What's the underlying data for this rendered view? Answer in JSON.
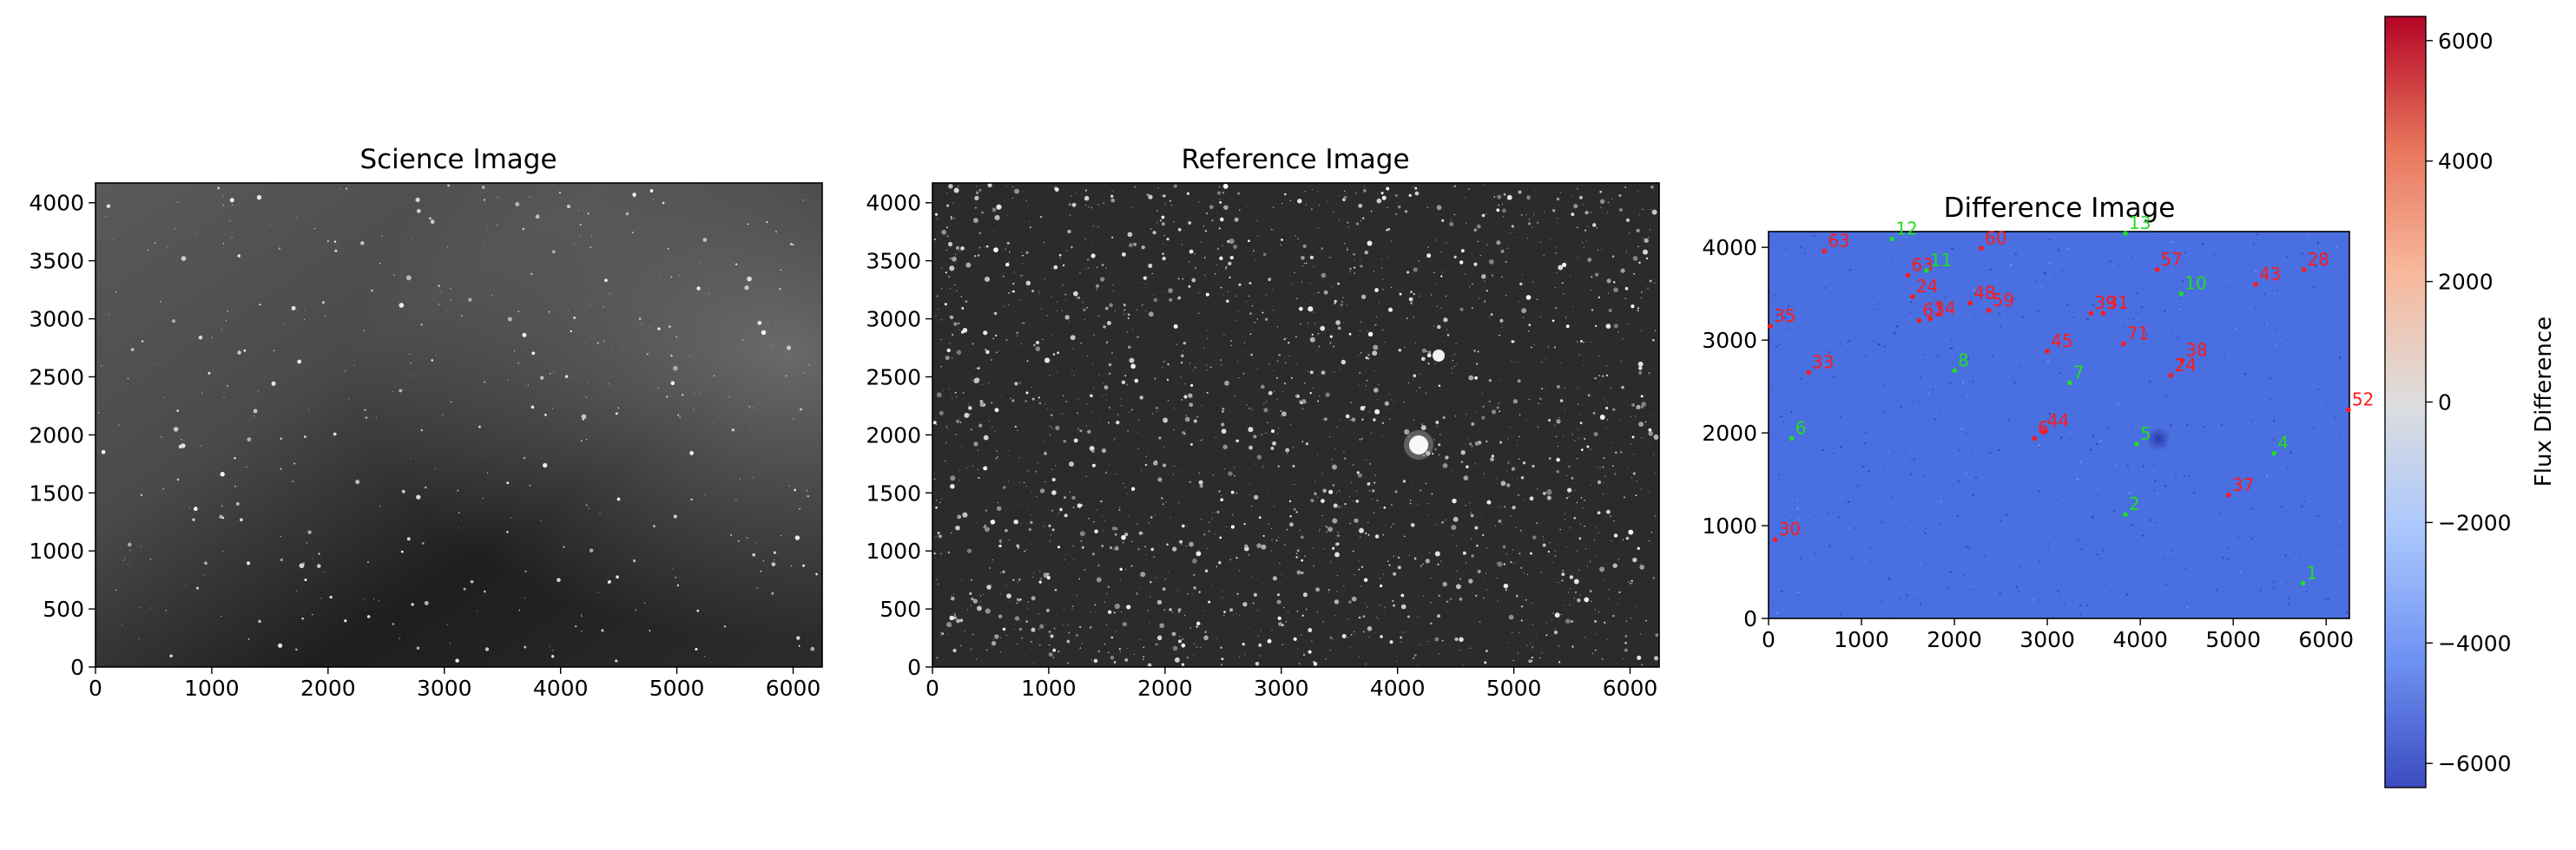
{
  "figure": {
    "colorbar": {
      "label": "Flux Difference",
      "ticks": [
        -6000,
        -4000,
        -2000,
        0,
        2000,
        4000,
        6000
      ],
      "tick_labels": [
        "−6000",
        "−4000",
        "−2000",
        "0",
        "2000",
        "4000",
        "6000"
      ],
      "range": [
        -6400,
        6400
      ],
      "colormap": "coolwarm",
      "colors": [
        "#3b4cc0",
        "#6f92f3",
        "#aac7fd",
        "#dddddd",
        "#f7b89c",
        "#e7745b",
        "#b40426"
      ]
    }
  },
  "chart_data": [
    {
      "type": "image",
      "title": "Science Image",
      "xlim": [
        0,
        6250
      ],
      "ylim": [
        0,
        4170
      ],
      "xticks": [
        0,
        1000,
        2000,
        3000,
        4000,
        5000,
        6000
      ],
      "yticks": [
        0,
        500,
        1000,
        1500,
        2000,
        2500,
        3000,
        3500,
        4000
      ],
      "colormap": "gray",
      "background": "#3a3a3a"
    },
    {
      "type": "image",
      "title": "Reference Image",
      "xlim": [
        0,
        6250
      ],
      "ylim": [
        0,
        4170
      ],
      "xticks": [
        0,
        1000,
        2000,
        3000,
        4000,
        5000,
        6000
      ],
      "yticks": [
        0,
        500,
        1000,
        1500,
        2000,
        2500,
        3000,
        3500,
        4000
      ],
      "colormap": "gray",
      "background": "#2a2a2a"
    },
    {
      "type": "scatter",
      "title": "Difference Image",
      "xlim": [
        0,
        6250
      ],
      "ylim": [
        0,
        4170
      ],
      "xticks": [
        0,
        1000,
        2000,
        3000,
        4000,
        5000,
        6000
      ],
      "yticks": [
        0,
        1000,
        2000,
        3000,
        4000
      ],
      "colormap": "coolwarm",
      "background": "#4a6fe0",
      "marker_colors": {
        "positive": "#ff1a1a",
        "negative": "#22dd22"
      },
      "series": [
        {
          "polarity": "positive",
          "points": [
            {
              "label": "63",
              "x": 600,
              "y": 3960
            },
            {
              "label": "60",
              "x": 2290,
              "y": 3990
            },
            {
              "label": "57",
              "x": 4180,
              "y": 3760
            },
            {
              "label": "43",
              "x": 5240,
              "y": 3600
            },
            {
              "label": "28",
              "x": 5760,
              "y": 3760
            },
            {
              "label": "63",
              "x": 1500,
              "y": 3700
            },
            {
              "label": "24",
              "x": 1550,
              "y": 3470
            },
            {
              "label": "48",
              "x": 2170,
              "y": 3400
            },
            {
              "label": "59",
              "x": 2370,
              "y": 3320
            },
            {
              "label": "34",
              "x": 1740,
              "y": 3230
            },
            {
              "label": "61",
              "x": 1620,
              "y": 3210
            },
            {
              "label": "35",
              "x": 20,
              "y": 3150
            },
            {
              "label": "39",
              "x": 3470,
              "y": 3290
            },
            {
              "label": "31",
              "x": 3600,
              "y": 3290
            },
            {
              "label": "45",
              "x": 3000,
              "y": 2880
            },
            {
              "label": "71",
              "x": 3820,
              "y": 2960
            },
            {
              "label": "38",
              "x": 4450,
              "y": 2780
            },
            {
              "label": "24",
              "x": 4330,
              "y": 2620
            },
            {
              "label": "33",
              "x": 430,
              "y": 2650
            },
            {
              "label": "52",
              "x": 6240,
              "y": 2250
            },
            {
              "label": "44",
              "x": 2960,
              "y": 2020
            },
            {
              "label": "6",
              "x": 2860,
              "y": 1940
            },
            {
              "label": "37",
              "x": 4950,
              "y": 1330
            },
            {
              "label": "30",
              "x": 70,
              "y": 850
            }
          ]
        },
        {
          "polarity": "negative",
          "points": [
            {
              "label": "12",
              "x": 1330,
              "y": 4090
            },
            {
              "label": "13",
              "x": 3840,
              "y": 4150
            },
            {
              "label": "11",
              "x": 1700,
              "y": 3750
            },
            {
              "label": "10",
              "x": 4440,
              "y": 3500
            },
            {
              "label": "8",
              "x": 2000,
              "y": 2670
            },
            {
              "label": "7",
              "x": 3240,
              "y": 2540
            },
            {
              "label": "6",
              "x": 250,
              "y": 1940
            },
            {
              "label": "5",
              "x": 3960,
              "y": 1880
            },
            {
              "label": "4",
              "x": 5440,
              "y": 1780
            },
            {
              "label": "2",
              "x": 3840,
              "y": 1120
            },
            {
              "label": "1",
              "x": 5750,
              "y": 380
            }
          ]
        }
      ]
    }
  ]
}
